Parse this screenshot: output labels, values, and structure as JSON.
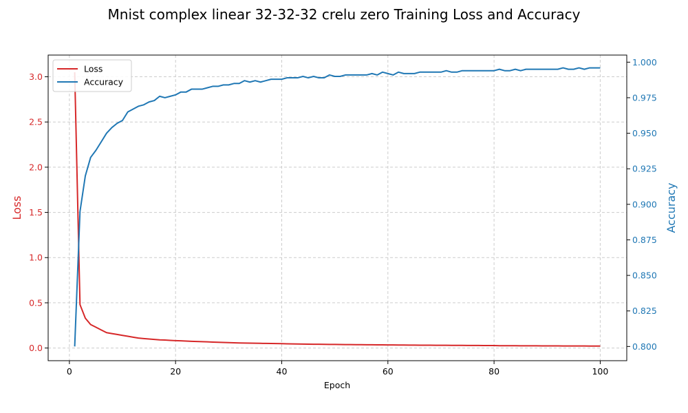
{
  "chart_data": {
    "type": "line",
    "title": "Mnist complex linear 32-32-32 crelu zero Training Loss and Accuracy",
    "xlabel": "Epoch",
    "ylabel_left": "Loss",
    "ylabel_right": "Accuracy",
    "xlim": [
      -4,
      105
    ],
    "ylim_left": [
      -0.14,
      3.24
    ],
    "ylim_right": [
      0.79,
      1.005
    ],
    "x_ticks": [
      0,
      20,
      40,
      60,
      80,
      100
    ],
    "y_ticks_left": [
      0.0,
      0.5,
      1.0,
      1.5,
      2.0,
      2.5,
      3.0
    ],
    "y_ticks_left_labels": [
      "0.0",
      "0.5",
      "1.0",
      "1.5",
      "2.0",
      "2.5",
      "3.0"
    ],
    "y_ticks_right": [
      0.8,
      0.825,
      0.85,
      0.875,
      0.9,
      0.925,
      0.95,
      0.975,
      1.0
    ],
    "y_ticks_right_labels": [
      "0.800",
      "0.825",
      "0.850",
      "0.875",
      "0.900",
      "0.925",
      "0.950",
      "0.975",
      "1.000"
    ],
    "grid": true,
    "legend_position": "top-left",
    "colors": {
      "loss": "#d62728",
      "accuracy": "#1f77b4"
    },
    "series": [
      {
        "name": "Loss",
        "axis": "left",
        "x_start": 1,
        "x_end": 100,
        "values": [
          3.05,
          0.48,
          0.33,
          0.26,
          0.23,
          0.2,
          0.17,
          0.16,
          0.15,
          0.14,
          0.13,
          0.12,
          0.11,
          0.105,
          0.1,
          0.095,
          0.09,
          0.088,
          0.085,
          0.082,
          0.08,
          0.077,
          0.074,
          0.072,
          0.07,
          0.068,
          0.066,
          0.064,
          0.062,
          0.06,
          0.058,
          0.056,
          0.055,
          0.054,
          0.053,
          0.052,
          0.051,
          0.05,
          0.049,
          0.048,
          0.047,
          0.046,
          0.045,
          0.044,
          0.043,
          0.042,
          0.042,
          0.041,
          0.04,
          0.04,
          0.039,
          0.038,
          0.038,
          0.037,
          0.037,
          0.036,
          0.036,
          0.035,
          0.035,
          0.034,
          0.034,
          0.033,
          0.033,
          0.032,
          0.032,
          0.031,
          0.031,
          0.031,
          0.03,
          0.03,
          0.03,
          0.029,
          0.029,
          0.029,
          0.028,
          0.028,
          0.028,
          0.027,
          0.027,
          0.027,
          0.026,
          0.026,
          0.026,
          0.026,
          0.025,
          0.025,
          0.025,
          0.025,
          0.024,
          0.024,
          0.024,
          0.024,
          0.023,
          0.023,
          0.023,
          0.023,
          0.023,
          0.022,
          0.022,
          0.022
        ]
      },
      {
        "name": "Accuracy",
        "axis": "right",
        "x_start": 1,
        "x_end": 100,
        "values": [
          0.8,
          0.895,
          0.92,
          0.933,
          0.938,
          0.944,
          0.95,
          0.954,
          0.957,
          0.959,
          0.965,
          0.967,
          0.969,
          0.97,
          0.972,
          0.973,
          0.976,
          0.975,
          0.976,
          0.977,
          0.979,
          0.979,
          0.981,
          0.981,
          0.981,
          0.982,
          0.983,
          0.983,
          0.984,
          0.984,
          0.985,
          0.985,
          0.987,
          0.986,
          0.987,
          0.986,
          0.987,
          0.988,
          0.988,
          0.988,
          0.989,
          0.989,
          0.989,
          0.99,
          0.989,
          0.99,
          0.989,
          0.989,
          0.991,
          0.99,
          0.99,
          0.991,
          0.991,
          0.991,
          0.991,
          0.991,
          0.992,
          0.991,
          0.993,
          0.992,
          0.991,
          0.993,
          0.992,
          0.992,
          0.992,
          0.993,
          0.993,
          0.993,
          0.993,
          0.993,
          0.994,
          0.993,
          0.993,
          0.994,
          0.994,
          0.994,
          0.994,
          0.994,
          0.994,
          0.994,
          0.995,
          0.994,
          0.994,
          0.995,
          0.994,
          0.995,
          0.995,
          0.995,
          0.995,
          0.995,
          0.995,
          0.995,
          0.996,
          0.995,
          0.995,
          0.996,
          0.995,
          0.996,
          0.996,
          0.996
        ]
      }
    ]
  }
}
